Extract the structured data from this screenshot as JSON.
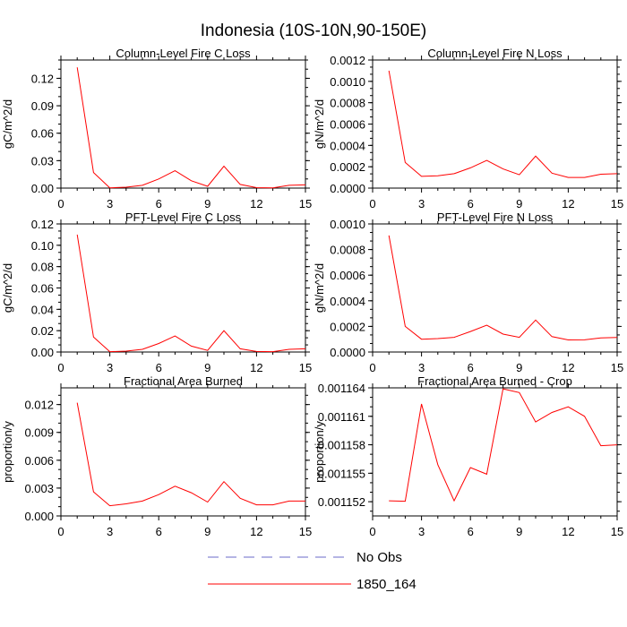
{
  "figure": {
    "title": "Indonesia (10S-10N,90-150E)"
  },
  "colors": {
    "model_line": "#ff0000",
    "obs_line": "#6b6bc8",
    "axis": "#000000"
  },
  "legend": {
    "placement": "bottom-center",
    "entries": [
      {
        "label": "No Obs",
        "style": "dashed",
        "color": "#6b6bc8"
      },
      {
        "label": "1850_164",
        "style": "solid",
        "color": "#ff0000"
      }
    ]
  },
  "chart_data": [
    {
      "type": "line",
      "title": "Column-Level Fire C Loss",
      "ylabel": "gC/m^2/d",
      "xlim": [
        0,
        15
      ],
      "ylim": [
        0,
        0.14
      ],
      "xticks": [
        0,
        3,
        6,
        9,
        12,
        15
      ],
      "yticks": [
        0.0,
        0.03,
        0.06,
        0.09,
        0.12
      ],
      "ytick_labels": [
        "0.00",
        "0.03",
        "0.06",
        "0.09",
        "0.12"
      ],
      "series": [
        {
          "name": "1850_164",
          "x": [
            1,
            2,
            3,
            4,
            5,
            6,
            7,
            8,
            9,
            10,
            11,
            12,
            13,
            14,
            15
          ],
          "values": [
            0.132,
            0.017,
            0.0003,
            0.001,
            0.003,
            0.01,
            0.019,
            0.008,
            0.002,
            0.024,
            0.004,
            0.0005,
            0.0003,
            0.003,
            0.0035
          ]
        }
      ]
    },
    {
      "type": "line",
      "title": "Column-Level Fire N Loss",
      "ylabel": "gN/m^2/d",
      "xlim": [
        0,
        15
      ],
      "ylim": [
        0,
        0.0012
      ],
      "xticks": [
        0,
        3,
        6,
        9,
        12,
        15
      ],
      "yticks": [
        0.0,
        0.0002,
        0.0004,
        0.0006,
        0.0008,
        0.001,
        0.0012
      ],
      "ytick_labels": [
        "0.0000",
        "0.0002",
        "0.0004",
        "0.0006",
        "0.0008",
        "0.0010",
        "0.0012"
      ],
      "series": [
        {
          "name": "1850_164",
          "x": [
            1,
            2,
            3,
            4,
            5,
            6,
            7,
            8,
            9,
            10,
            11,
            12,
            13,
            14,
            15
          ],
          "values": [
            0.0011,
            0.00024,
            0.00011,
            0.000115,
            0.000135,
            0.00019,
            0.00026,
            0.00018,
            0.000125,
            0.0003,
            0.00014,
            0.0001,
            0.0001,
            0.00013,
            0.000135
          ]
        }
      ]
    },
    {
      "type": "line",
      "title": "PFT-Level Fire C Loss",
      "ylabel": "gC/m^2/d",
      "xlim": [
        0,
        15
      ],
      "ylim": [
        0,
        0.12
      ],
      "xticks": [
        0,
        3,
        6,
        9,
        12,
        15
      ],
      "yticks": [
        0.0,
        0.02,
        0.04,
        0.06,
        0.08,
        0.1,
        0.12
      ],
      "ytick_labels": [
        "0.00",
        "0.02",
        "0.04",
        "0.06",
        "0.08",
        "0.10",
        "0.12"
      ],
      "series": [
        {
          "name": "1850_164",
          "x": [
            1,
            2,
            3,
            4,
            5,
            6,
            7,
            8,
            9,
            10,
            11,
            12,
            13,
            14,
            15
          ],
          "values": [
            0.11,
            0.014,
            0.0003,
            0.0008,
            0.0025,
            0.008,
            0.015,
            0.0055,
            0.0015,
            0.02,
            0.003,
            0.0005,
            0.0003,
            0.0025,
            0.003
          ]
        }
      ]
    },
    {
      "type": "line",
      "title": "PFT-Level Fire N Loss",
      "ylabel": "gN/m^2/d",
      "xlim": [
        0,
        15
      ],
      "ylim": [
        0,
        0.001
      ],
      "xticks": [
        0,
        3,
        6,
        9,
        12,
        15
      ],
      "yticks": [
        0.0,
        0.0002,
        0.0004,
        0.0006,
        0.0008,
        0.001
      ],
      "ytick_labels": [
        "0.0000",
        "0.0002",
        "0.0004",
        "0.0006",
        "0.0008",
        "0.0010"
      ],
      "series": [
        {
          "name": "1850_164",
          "x": [
            1,
            2,
            3,
            4,
            5,
            6,
            7,
            8,
            9,
            10,
            11,
            12,
            13,
            14,
            15
          ],
          "values": [
            0.00091,
            0.0002,
            0.0001,
            0.000105,
            0.000115,
            0.00016,
            0.00021,
            0.00014,
            0.000115,
            0.00025,
            0.00012,
            9.45e-05,
            9.5e-05,
            0.00011,
            0.000113
          ]
        }
      ]
    },
    {
      "type": "line",
      "title": "Fractional Area Burned",
      "ylabel": "proportion/y",
      "xlim": [
        0,
        15
      ],
      "ylim": [
        0,
        0.0138
      ],
      "xticks": [
        0,
        3,
        6,
        9,
        12,
        15
      ],
      "yticks": [
        0.0,
        0.003,
        0.006,
        0.009,
        0.012
      ],
      "ytick_labels": [
        "0.000",
        "0.003",
        "0.006",
        "0.009",
        "0.012"
      ],
      "series": [
        {
          "name": "1850_164",
          "x": [
            1,
            2,
            3,
            4,
            5,
            6,
            7,
            8,
            9,
            10,
            11,
            12,
            13,
            14,
            15
          ],
          "values": [
            0.0122,
            0.0026,
            0.0011,
            0.0013,
            0.0016,
            0.0023,
            0.0032,
            0.0025,
            0.0015,
            0.0037,
            0.0019,
            0.0012,
            0.0012,
            0.0016,
            0.0016
          ]
        }
      ]
    },
    {
      "type": "line",
      "title": "Fractional Area Burned - Crop",
      "ylabel": "proportion/y",
      "xlim": [
        0,
        15
      ],
      "ylim": [
        0.0011505,
        0.001164
      ],
      "xticks": [
        0,
        3,
        6,
        9,
        12,
        15
      ],
      "yticks": [
        0.001152,
        0.001155,
        0.001158,
        0.001161,
        0.001164
      ],
      "ytick_labels": [
        "0.001152",
        "0.001155",
        "0.001158",
        "0.001161",
        "0.001164"
      ],
      "series": [
        {
          "name": "1850_164",
          "x": [
            1,
            2,
            3,
            4,
            5,
            6,
            7,
            8,
            9,
            10,
            11,
            12,
            13,
            14,
            15
          ],
          "values": [
            0.0011521,
            0.00115205,
            0.0011623,
            0.0011559,
            0.0011521,
            0.0011556,
            0.0011549,
            0.0011639,
            0.0011635,
            0.0011604,
            0.0011614,
            0.001162,
            0.001161,
            0.0011579,
            0.001158
          ]
        }
      ]
    }
  ]
}
